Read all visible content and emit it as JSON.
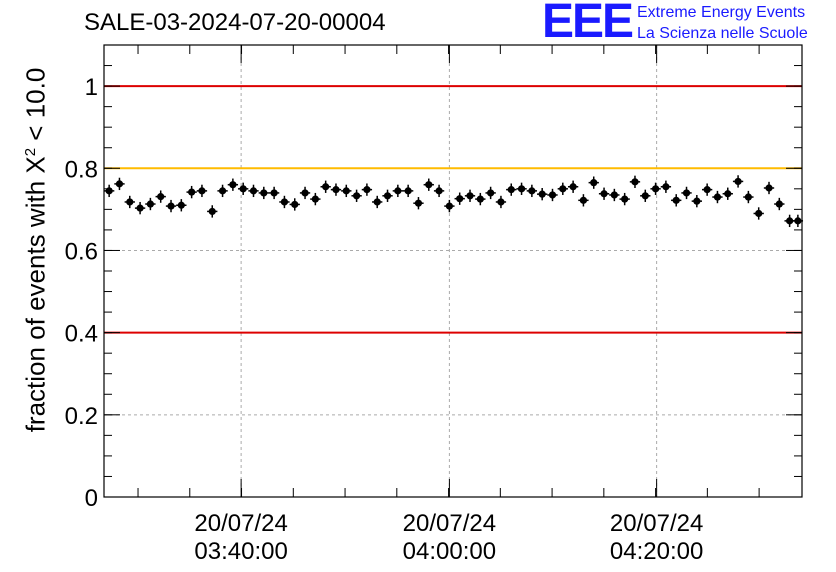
{
  "header": {
    "run_title": "SALE-03-2024-07-20-00004"
  },
  "logo": {
    "letters": "EEE",
    "line1": "Extreme Energy Events",
    "line2": "La Scienza nelle Scuole"
  },
  "chart_data": {
    "type": "scatter",
    "title": "SALE-03-2024-07-20-00004",
    "xlabel": "",
    "ylabel_prefix": "fraction of events with X",
    "ylabel_sup": "2",
    "ylabel_suffix": " < 10.0",
    "ylim": [
      0,
      1.1
    ],
    "x_unit": "minutes after 03:20:00",
    "xlim": [
      0,
      67.7
    ],
    "y_ticks": [
      "0",
      "0.2",
      "0.4",
      "0.6",
      "0.8",
      "1"
    ],
    "x_ticks": [
      {
        "x": 13.3,
        "date": "20/07/24",
        "time": "03:40:00"
      },
      {
        "x": 33.5,
        "date": "20/07/24",
        "time": "04:00:00"
      },
      {
        "x": 53.6,
        "date": "20/07/24",
        "time": "04:20:00"
      }
    ],
    "reference_lines": [
      {
        "y": 1.0,
        "color": "#dd0000"
      },
      {
        "y": 0.8,
        "color": "#ffbb00"
      },
      {
        "y": 0.4,
        "color": "#dd0000"
      }
    ],
    "grid": true,
    "point_color": "#000000",
    "x_error": 0.5,
    "y_error": 0.015,
    "series": [
      {
        "name": "fraction",
        "x": [
          0.5,
          1.5,
          2.5,
          3.5,
          4.5,
          5.5,
          6.5,
          7.5,
          8.5,
          9.5,
          10.5,
          11.5,
          12.5,
          13.5,
          14.5,
          15.5,
          16.5,
          17.5,
          18.5,
          19.5,
          20.5,
          21.5,
          22.5,
          23.5,
          24.5,
          25.5,
          26.5,
          27.5,
          28.5,
          29.5,
          30.5,
          31.5,
          32.5,
          33.5,
          34.5,
          35.5,
          36.5,
          37.5,
          38.5,
          39.5,
          40.5,
          41.5,
          42.5,
          43.5,
          44.5,
          45.5,
          46.5,
          47.5,
          48.5,
          49.5,
          50.5,
          51.5,
          52.5,
          53.5,
          54.5,
          55.5,
          56.5,
          57.5,
          58.5,
          59.5,
          60.5,
          61.5,
          62.5,
          63.5,
          64.5,
          65.5,
          66.5,
          67.3
        ],
        "y": [
          0.745,
          0.762,
          0.718,
          0.703,
          0.713,
          0.731,
          0.708,
          0.71,
          0.742,
          0.745,
          0.695,
          0.745,
          0.76,
          0.75,
          0.745,
          0.74,
          0.74,
          0.718,
          0.712,
          0.74,
          0.725,
          0.755,
          0.748,
          0.745,
          0.733,
          0.748,
          0.718,
          0.733,
          0.745,
          0.745,
          0.715,
          0.76,
          0.745,
          0.708,
          0.726,
          0.733,
          0.725,
          0.74,
          0.718,
          0.748,
          0.75,
          0.745,
          0.737,
          0.735,
          0.75,
          0.755,
          0.722,
          0.765,
          0.738,
          0.735,
          0.725,
          0.767,
          0.733,
          0.75,
          0.755,
          0.722,
          0.74,
          0.72,
          0.748,
          0.73,
          0.738,
          0.768,
          0.73,
          0.69,
          0.752,
          0.713,
          0.672,
          0.672
        ]
      }
    ]
  }
}
